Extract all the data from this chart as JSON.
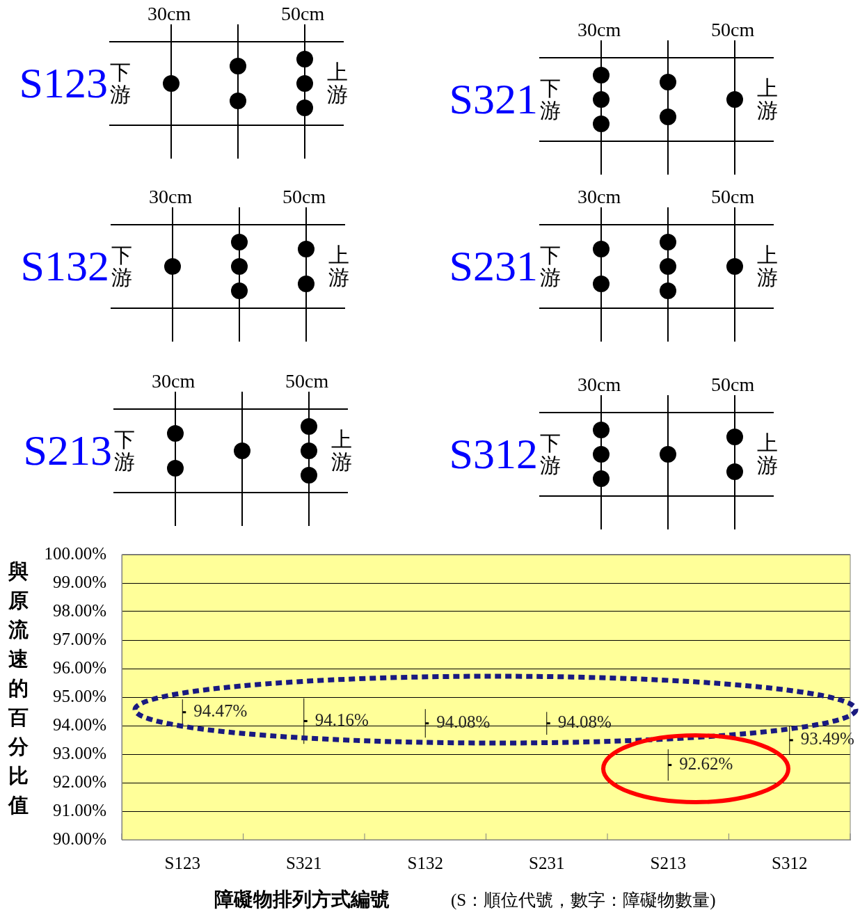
{
  "chart_data": {
    "type": "scatter",
    "xlabel": "障礙物排列方式編號",
    "ylabel": "與原流速的百分比值",
    "categories": [
      "S123",
      "S321",
      "S132",
      "S231",
      "S213",
      "S312"
    ],
    "values": [
      94.47,
      94.16,
      94.08,
      94.08,
      92.62,
      93.49
    ],
    "errors": [
      0.45,
      0.8,
      0.5,
      0.4,
      0.55,
      0.5
    ],
    "value_labels": [
      "94.47%",
      "94.16%",
      "94.08%",
      "94.08%",
      "92.62%",
      "93.49%"
    ],
    "color": "#000000",
    "ylim": [
      90,
      100
    ],
    "yticks": [
      {
        "value": 90,
        "label": "90.00%"
      },
      {
        "value": 91,
        "label": "91.00%"
      },
      {
        "value": 92,
        "label": "92.00%"
      },
      {
        "value": 93,
        "label": "93.00%"
      },
      {
        "value": 94,
        "label": "94.00%"
      },
      {
        "value": 95,
        "label": "95.00%"
      },
      {
        "value": 96,
        "label": "96.00%"
      },
      {
        "value": 97,
        "label": "97.00%"
      },
      {
        "value": 98,
        "label": "98.00%"
      },
      {
        "value": 99,
        "label": "99.00%"
      },
      {
        "value": 100,
        "label": "100.00%"
      }
    ],
    "grid": "y",
    "legend": false,
    "annotations": [
      "(S：順位代號，數字：障礙物數量)",
      "S123",
      "30cm",
      "50cm",
      "下游",
      "上游",
      "S321",
      "30cm",
      "50cm",
      "下游",
      "上游",
      "S132",
      "30cm",
      "50cm",
      "下游",
      "上游",
      "S231",
      "30cm",
      "50cm",
      "下游",
      "上游",
      "S213",
      "30cm",
      "50cm",
      "下游",
      "上游",
      "S312",
      "30cm",
      "50cm",
      "下游",
      "上游"
    ]
  }
}
